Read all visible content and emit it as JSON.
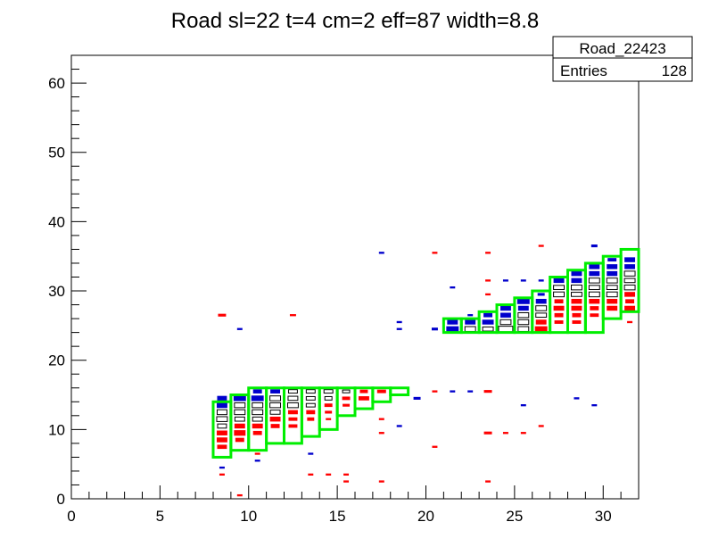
{
  "chart_data": {
    "type": "heatmap",
    "title": "Road sl=22 t=4 cm=2 eff=87 width=8.8",
    "xlabel": "",
    "ylabel": "",
    "xlim": [
      0,
      32
    ],
    "ylim": [
      0,
      64
    ],
    "x_ticks": [
      0,
      5,
      10,
      15,
      20,
      25,
      30
    ],
    "y_ticks": [
      0,
      10,
      20,
      30,
      40,
      50,
      60
    ],
    "grid": false,
    "stats_box": {
      "name": "Road_22423",
      "entries_label": "Entries",
      "entries_value": "128"
    },
    "colors": {
      "blue": "#0000cc",
      "red": "#ff0000",
      "green": "#00ee00",
      "black": "#000000"
    },
    "road_boxes": [
      [
        8,
        6,
        9,
        14
      ],
      [
        9,
        7,
        10,
        15
      ],
      [
        10,
        7,
        11,
        16
      ],
      [
        11,
        8,
        12,
        16
      ],
      [
        12,
        8,
        13,
        16
      ],
      [
        13,
        9,
        14,
        16
      ],
      [
        14,
        10,
        15,
        16
      ],
      [
        15,
        12,
        16,
        16
      ],
      [
        16,
        13,
        17,
        16
      ],
      [
        17,
        14,
        18,
        16
      ],
      [
        18,
        15,
        19,
        16
      ],
      [
        21,
        24,
        22,
        26
      ],
      [
        22,
        24,
        23,
        26
      ],
      [
        23,
        24,
        24,
        27
      ],
      [
        24,
        24,
        25,
        28
      ],
      [
        25,
        24,
        26,
        29
      ],
      [
        26,
        24,
        27,
        30
      ],
      [
        27,
        24,
        28,
        32
      ],
      [
        28,
        24,
        29,
        33
      ],
      [
        29,
        24,
        30,
        34
      ],
      [
        30,
        26,
        31,
        35
      ],
      [
        31,
        27,
        32,
        36
      ]
    ],
    "cells": [
      {
        "x": 8,
        "y": 14,
        "c": "blue",
        "w": 0.55,
        "h": 0.7
      },
      {
        "x": 8,
        "y": 13,
        "c": "blue",
        "w": 0.6,
        "h": 0.8
      },
      {
        "x": 8,
        "y": 12,
        "c": "white",
        "w": 0.55,
        "h": 0.7
      },
      {
        "x": 8,
        "y": 11,
        "c": "white",
        "w": 0.6,
        "h": 0.7
      },
      {
        "x": 8,
        "y": 10,
        "c": "white",
        "w": 0.5,
        "h": 0.6
      },
      {
        "x": 8,
        "y": 9,
        "c": "red",
        "w": 0.6,
        "h": 0.7
      },
      {
        "x": 8,
        "y": 8,
        "c": "red",
        "w": 0.6,
        "h": 0.7
      },
      {
        "x": 8,
        "y": 7,
        "c": "red",
        "w": 0.55,
        "h": 0.6
      },
      {
        "x": 9,
        "y": 14,
        "c": "blue",
        "w": 0.7,
        "h": 0.8
      },
      {
        "x": 9,
        "y": 13,
        "c": "white",
        "w": 0.6,
        "h": 0.7
      },
      {
        "x": 9,
        "y": 12,
        "c": "white",
        "w": 0.6,
        "h": 0.7
      },
      {
        "x": 9,
        "y": 11,
        "c": "white",
        "w": 0.55,
        "h": 0.6
      },
      {
        "x": 9,
        "y": 10,
        "c": "red",
        "w": 0.6,
        "h": 0.7
      },
      {
        "x": 9,
        "y": 9,
        "c": "red",
        "w": 0.65,
        "h": 0.8
      },
      {
        "x": 9,
        "y": 8,
        "c": "red",
        "w": 0.5,
        "h": 0.6
      },
      {
        "x": 10,
        "y": 15,
        "c": "blue",
        "w": 0.5,
        "h": 0.6
      },
      {
        "x": 10,
        "y": 14,
        "c": "blue",
        "w": 0.7,
        "h": 0.8
      },
      {
        "x": 10,
        "y": 13,
        "c": "white",
        "w": 0.6,
        "h": 0.7
      },
      {
        "x": 10,
        "y": 12,
        "c": "white",
        "w": 0.6,
        "h": 0.7
      },
      {
        "x": 10,
        "y": 11,
        "c": "white",
        "w": 0.55,
        "h": 0.6
      },
      {
        "x": 10,
        "y": 10,
        "c": "red",
        "w": 0.6,
        "h": 0.7
      },
      {
        "x": 10,
        "y": 9,
        "c": "red",
        "w": 0.5,
        "h": 0.6
      },
      {
        "x": 11,
        "y": 15,
        "c": "blue",
        "w": 0.55,
        "h": 0.6
      },
      {
        "x": 11,
        "y": 14,
        "c": "white",
        "w": 0.6,
        "h": 0.7
      },
      {
        "x": 11,
        "y": 13,
        "c": "white",
        "w": 0.6,
        "h": 0.7
      },
      {
        "x": 11,
        "y": 12,
        "c": "white",
        "w": 0.55,
        "h": 0.6
      },
      {
        "x": 11,
        "y": 11,
        "c": "red",
        "w": 0.6,
        "h": 0.7
      },
      {
        "x": 11,
        "y": 10,
        "c": "red",
        "w": 0.5,
        "h": 0.6
      },
      {
        "x": 12,
        "y": 15,
        "c": "white",
        "w": 0.5,
        "h": 0.5
      },
      {
        "x": 12,
        "y": 14,
        "c": "white",
        "w": 0.55,
        "h": 0.6
      },
      {
        "x": 12,
        "y": 13,
        "c": "white",
        "w": 0.6,
        "h": 0.7
      },
      {
        "x": 12,
        "y": 12,
        "c": "red",
        "w": 0.55,
        "h": 0.6
      },
      {
        "x": 12,
        "y": 11,
        "c": "red",
        "w": 0.5,
        "h": 0.5
      },
      {
        "x": 12,
        "y": 10,
        "c": "red",
        "w": 0.5,
        "h": 0.5
      },
      {
        "x": 13,
        "y": 15,
        "c": "white",
        "w": 0.5,
        "h": 0.5
      },
      {
        "x": 13,
        "y": 14,
        "c": "white",
        "w": 0.5,
        "h": 0.5
      },
      {
        "x": 13,
        "y": 13,
        "c": "white",
        "w": 0.5,
        "h": 0.5
      },
      {
        "x": 13,
        "y": 12,
        "c": "red",
        "w": 0.5,
        "h": 0.6
      },
      {
        "x": 13,
        "y": 11,
        "c": "red",
        "w": 0.4,
        "h": 0.5
      },
      {
        "x": 14,
        "y": 15,
        "c": "white",
        "w": 0.5,
        "h": 0.5
      },
      {
        "x": 14,
        "y": 14,
        "c": "white",
        "w": 0.4,
        "h": 0.5
      },
      {
        "x": 14,
        "y": 13,
        "c": "red",
        "w": 0.45,
        "h": 0.5
      },
      {
        "x": 14,
        "y": 12,
        "c": "red",
        "w": 0.4,
        "h": 0.4
      },
      {
        "x": 14,
        "y": 11,
        "c": "red",
        "w": 0.3,
        "h": 0.3
      },
      {
        "x": 15,
        "y": 15,
        "c": "white",
        "w": 0.4,
        "h": 0.4
      },
      {
        "x": 15,
        "y": 14,
        "c": "red",
        "w": 0.45,
        "h": 0.5
      },
      {
        "x": 15,
        "y": 13,
        "c": "red",
        "w": 0.4,
        "h": 0.4
      },
      {
        "x": 16,
        "y": 15,
        "c": "red",
        "w": 0.45,
        "h": 0.5
      },
      {
        "x": 16,
        "y": 14,
        "c": "red",
        "w": 0.6,
        "h": 0.6
      },
      {
        "x": 17,
        "y": 15,
        "c": "red",
        "w": 0.5,
        "h": 0.5
      },
      {
        "x": 8,
        "y": 4,
        "c": "blue",
        "w": 0.3,
        "h": 0.3
      },
      {
        "x": 8,
        "y": 3,
        "c": "red",
        "w": 0.3,
        "h": 0.3
      },
      {
        "x": 9,
        "y": 0,
        "c": "red",
        "w": 0.3,
        "h": 0.3
      },
      {
        "x": 10,
        "y": 6,
        "c": "red",
        "w": 0.3,
        "h": 0.3
      },
      {
        "x": 10,
        "y": 5,
        "c": "blue",
        "w": 0.3,
        "h": 0.3
      },
      {
        "x": 13,
        "y": 6,
        "c": "blue",
        "w": 0.3,
        "h": 0.3
      },
      {
        "x": 13,
        "y": 3,
        "c": "red",
        "w": 0.3,
        "h": 0.3
      },
      {
        "x": 14,
        "y": 3,
        "c": "red",
        "w": 0.3,
        "h": 0.3
      },
      {
        "x": 15,
        "y": 3,
        "c": "red",
        "w": 0.3,
        "h": 0.3
      },
      {
        "x": 15,
        "y": 2,
        "c": "red",
        "w": 0.3,
        "h": 0.3
      },
      {
        "x": 17,
        "y": 11,
        "c": "red",
        "w": 0.3,
        "h": 0.3
      },
      {
        "x": 17,
        "y": 9,
        "c": "red",
        "w": 0.3,
        "h": 0.3
      },
      {
        "x": 17,
        "y": 2,
        "c": "red",
        "w": 0.3,
        "h": 0.3
      },
      {
        "x": 18,
        "y": 10,
        "c": "blue",
        "w": 0.3,
        "h": 0.3
      },
      {
        "x": 19,
        "y": 14,
        "c": "blue",
        "w": 0.4,
        "h": 0.4
      },
      {
        "x": 20,
        "y": 15,
        "c": "red",
        "w": 0.3,
        "h": 0.3
      },
      {
        "x": 20,
        "y": 7,
        "c": "red",
        "w": 0.3,
        "h": 0.3
      },
      {
        "x": 21,
        "y": 15,
        "c": "blue",
        "w": 0.3,
        "h": 0.3
      },
      {
        "x": 22,
        "y": 15,
        "c": "blue",
        "w": 0.3,
        "h": 0.3
      },
      {
        "x": 23,
        "y": 15,
        "c": "red",
        "w": 0.45,
        "h": 0.4
      },
      {
        "x": 23,
        "y": 9,
        "c": "red",
        "w": 0.45,
        "h": 0.4
      },
      {
        "x": 23,
        "y": 2,
        "c": "red",
        "w": 0.3,
        "h": 0.3
      },
      {
        "x": 24,
        "y": 9,
        "c": "red",
        "w": 0.3,
        "h": 0.3
      },
      {
        "x": 25,
        "y": 13,
        "c": "blue",
        "w": 0.3,
        "h": 0.3
      },
      {
        "x": 25,
        "y": 9,
        "c": "red",
        "w": 0.3,
        "h": 0.3
      },
      {
        "x": 26,
        "y": 10,
        "c": "red",
        "w": 0.3,
        "h": 0.3
      },
      {
        "x": 28,
        "y": 14,
        "c": "blue",
        "w": 0.3,
        "h": 0.3
      },
      {
        "x": 29,
        "y": 13,
        "c": "blue",
        "w": 0.3,
        "h": 0.3
      },
      {
        "x": 8,
        "y": 26,
        "c": "red",
        "w": 0.45,
        "h": 0.4
      },
      {
        "x": 9,
        "y": 24,
        "c": "blue",
        "w": 0.3,
        "h": 0.3
      },
      {
        "x": 12,
        "y": 26,
        "c": "red",
        "w": 0.35,
        "h": 0.3
      },
      {
        "x": 17,
        "y": 35,
        "c": "blue",
        "w": 0.3,
        "h": 0.3
      },
      {
        "x": 18,
        "y": 25,
        "c": "blue",
        "w": 0.3,
        "h": 0.3
      },
      {
        "x": 18,
        "y": 24,
        "c": "blue",
        "w": 0.3,
        "h": 0.3
      },
      {
        "x": 20,
        "y": 35,
        "c": "red",
        "w": 0.3,
        "h": 0.3
      },
      {
        "x": 20,
        "y": 24,
        "c": "blue",
        "w": 0.35,
        "h": 0.4
      },
      {
        "x": 21,
        "y": 30,
        "c": "blue",
        "w": 0.3,
        "h": 0.3
      },
      {
        "x": 22,
        "y": 26,
        "c": "blue",
        "w": 0.3,
        "h": 0.3
      },
      {
        "x": 23,
        "y": 35,
        "c": "red",
        "w": 0.3,
        "h": 0.3
      },
      {
        "x": 23,
        "y": 31,
        "c": "red",
        "w": 0.3,
        "h": 0.3
      },
      {
        "x": 23,
        "y": 29,
        "c": "red",
        "w": 0.3,
        "h": 0.3
      },
      {
        "x": 24,
        "y": 31,
        "c": "blue",
        "w": 0.3,
        "h": 0.3
      },
      {
        "x": 25,
        "y": 31,
        "c": "blue",
        "w": 0.3,
        "h": 0.3
      },
      {
        "x": 26,
        "y": 36,
        "c": "red",
        "w": 0.3,
        "h": 0.3
      },
      {
        "x": 26,
        "y": 31,
        "c": "blue",
        "w": 0.3,
        "h": 0.3
      },
      {
        "x": 28,
        "y": 29,
        "c": "black",
        "w": 0.3,
        "h": 0.3
      },
      {
        "x": 29,
        "y": 36,
        "c": "blue",
        "w": 0.35,
        "h": 0.4
      },
      {
        "x": 31,
        "y": 25,
        "c": "red",
        "w": 0.3,
        "h": 0.3
      },
      {
        "x": 21,
        "y": 25,
        "c": "blue",
        "w": 0.6,
        "h": 0.7
      },
      {
        "x": 21,
        "y": 24,
        "c": "blue",
        "w": 0.7,
        "h": 0.8
      },
      {
        "x": 22,
        "y": 25,
        "c": "blue",
        "w": 0.6,
        "h": 0.7
      },
      {
        "x": 22,
        "y": 24,
        "c": "white",
        "w": 0.6,
        "h": 0.7
      },
      {
        "x": 23,
        "y": 26,
        "c": "blue",
        "w": 0.5,
        "h": 0.6
      },
      {
        "x": 23,
        "y": 25,
        "c": "blue",
        "w": 0.65,
        "h": 0.7
      },
      {
        "x": 23,
        "y": 24,
        "c": "white",
        "w": 0.6,
        "h": 0.6
      },
      {
        "x": 24,
        "y": 27,
        "c": "blue",
        "w": 0.6,
        "h": 0.7
      },
      {
        "x": 24,
        "y": 26,
        "c": "blue",
        "w": 0.6,
        "h": 0.7
      },
      {
        "x": 24,
        "y": 25,
        "c": "white",
        "w": 0.6,
        "h": 0.7
      },
      {
        "x": 24,
        "y": 24,
        "c": "white",
        "w": 0.8,
        "h": 0.8
      },
      {
        "x": 25,
        "y": 28,
        "c": "blue",
        "w": 0.7,
        "h": 0.8
      },
      {
        "x": 25,
        "y": 27,
        "c": "blue",
        "w": 0.6,
        "h": 0.7
      },
      {
        "x": 25,
        "y": 26,
        "c": "white",
        "w": 0.6,
        "h": 0.7
      },
      {
        "x": 25,
        "y": 25,
        "c": "white",
        "w": 0.6,
        "h": 0.7
      },
      {
        "x": 25,
        "y": 24,
        "c": "white",
        "w": 0.6,
        "h": 0.7
      },
      {
        "x": 26,
        "y": 29,
        "c": "blue",
        "w": 0.4,
        "h": 0.4
      },
      {
        "x": 26,
        "y": 28,
        "c": "blue",
        "w": 0.6,
        "h": 0.7
      },
      {
        "x": 26,
        "y": 27,
        "c": "white",
        "w": 0.6,
        "h": 0.7
      },
      {
        "x": 26,
        "y": 26,
        "c": "white",
        "w": 0.6,
        "h": 0.6
      },
      {
        "x": 26,
        "y": 25,
        "c": "red",
        "w": 0.6,
        "h": 0.7
      },
      {
        "x": 26,
        "y": 24,
        "c": "red",
        "w": 0.7,
        "h": 0.8
      },
      {
        "x": 27,
        "y": 31,
        "c": "blue",
        "w": 0.6,
        "h": 0.7
      },
      {
        "x": 27,
        "y": 30,
        "c": "white",
        "w": 0.6,
        "h": 0.6
      },
      {
        "x": 27,
        "y": 29,
        "c": "white",
        "w": 0.6,
        "h": 0.7
      },
      {
        "x": 27,
        "y": 28,
        "c": "red",
        "w": 0.5,
        "h": 0.6
      },
      {
        "x": 27,
        "y": 27,
        "c": "red",
        "w": 0.6,
        "h": 0.7
      },
      {
        "x": 27,
        "y": 26,
        "c": "red",
        "w": 0.5,
        "h": 0.6
      },
      {
        "x": 27,
        "y": 25,
        "c": "red",
        "w": 0.5,
        "h": 0.5
      },
      {
        "x": 28,
        "y": 32,
        "c": "blue",
        "w": 0.6,
        "h": 0.7
      },
      {
        "x": 28,
        "y": 31,
        "c": "blue",
        "w": 0.6,
        "h": 0.7
      },
      {
        "x": 28,
        "y": 30,
        "c": "white",
        "w": 0.6,
        "h": 0.7
      },
      {
        "x": 28,
        "y": 29,
        "c": "white",
        "w": 0.6,
        "h": 0.6
      },
      {
        "x": 28,
        "y": 28,
        "c": "red",
        "w": 0.6,
        "h": 0.7
      },
      {
        "x": 28,
        "y": 27,
        "c": "red",
        "w": 0.6,
        "h": 0.7
      },
      {
        "x": 28,
        "y": 26,
        "c": "red",
        "w": 0.5,
        "h": 0.6
      },
      {
        "x": 28,
        "y": 25,
        "c": "red",
        "w": 0.5,
        "h": 0.5
      },
      {
        "x": 29,
        "y": 33,
        "c": "blue",
        "w": 0.6,
        "h": 0.7
      },
      {
        "x": 29,
        "y": 32,
        "c": "blue",
        "w": 0.6,
        "h": 0.7
      },
      {
        "x": 29,
        "y": 31,
        "c": "white",
        "w": 0.6,
        "h": 0.7
      },
      {
        "x": 29,
        "y": 30,
        "c": "white",
        "w": 0.6,
        "h": 0.6
      },
      {
        "x": 29,
        "y": 29,
        "c": "white",
        "w": 0.6,
        "h": 0.7
      },
      {
        "x": 29,
        "y": 28,
        "c": "red",
        "w": 0.6,
        "h": 0.7
      },
      {
        "x": 29,
        "y": 27,
        "c": "red",
        "w": 0.5,
        "h": 0.6
      },
      {
        "x": 29,
        "y": 26,
        "c": "red",
        "w": 0.5,
        "h": 0.5
      },
      {
        "x": 30,
        "y": 34,
        "c": "blue",
        "w": 0.5,
        "h": 0.5
      },
      {
        "x": 30,
        "y": 33,
        "c": "blue",
        "w": 0.6,
        "h": 0.7
      },
      {
        "x": 30,
        "y": 32,
        "c": "blue",
        "w": 0.6,
        "h": 0.7
      },
      {
        "x": 30,
        "y": 31,
        "c": "white",
        "w": 0.6,
        "h": 0.7
      },
      {
        "x": 30,
        "y": 30,
        "c": "white",
        "w": 0.6,
        "h": 0.6
      },
      {
        "x": 30,
        "y": 29,
        "c": "white",
        "w": 0.6,
        "h": 0.7
      },
      {
        "x": 30,
        "y": 28,
        "c": "red",
        "w": 0.6,
        "h": 0.7
      },
      {
        "x": 30,
        "y": 27,
        "c": "red",
        "w": 0.6,
        "h": 0.7
      },
      {
        "x": 31,
        "y": 34,
        "c": "blue",
        "w": 0.6,
        "h": 0.7
      },
      {
        "x": 31,
        "y": 33,
        "c": "blue",
        "w": 0.6,
        "h": 0.7
      },
      {
        "x": 31,
        "y": 32,
        "c": "white",
        "w": 0.6,
        "h": 0.7
      },
      {
        "x": 31,
        "y": 31,
        "c": "white",
        "w": 0.6,
        "h": 0.6
      },
      {
        "x": 31,
        "y": 30,
        "c": "white",
        "w": 0.6,
        "h": 0.7
      },
      {
        "x": 31,
        "y": 29,
        "c": "red",
        "w": 0.6,
        "h": 0.7
      },
      {
        "x": 31,
        "y": 28,
        "c": "red",
        "w": 0.5,
        "h": 0.6
      },
      {
        "x": 31,
        "y": 27,
        "c": "red",
        "w": 0.6,
        "h": 0.7
      }
    ]
  }
}
